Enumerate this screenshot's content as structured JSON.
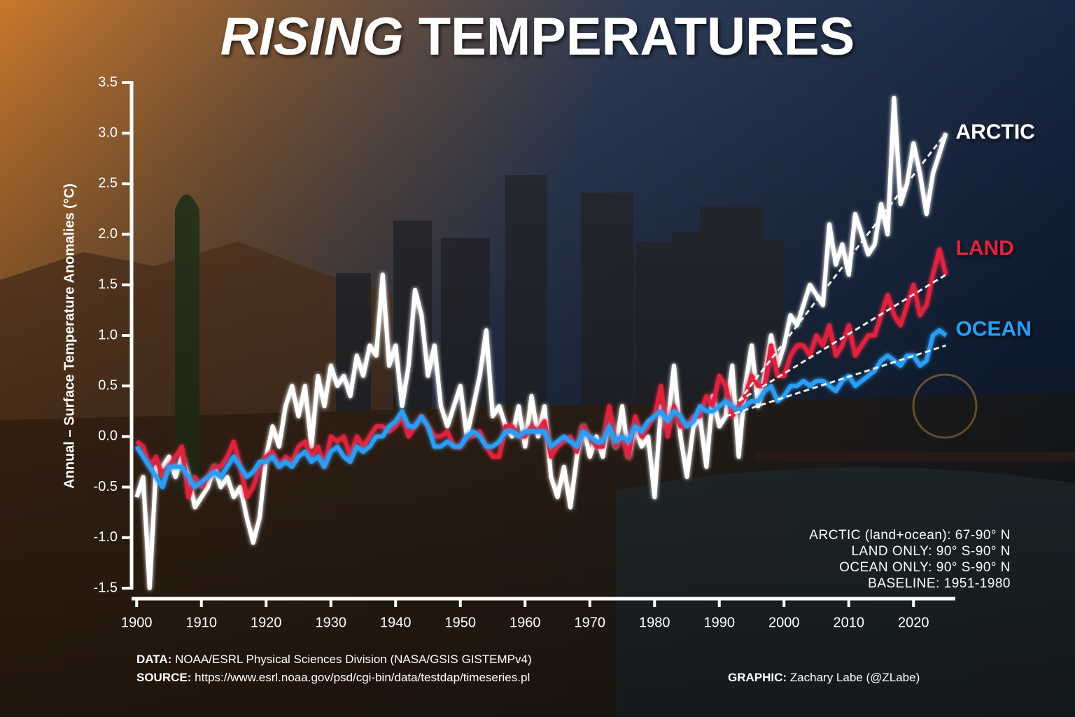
{
  "chart_data": {
    "type": "line",
    "title": {
      "italic": "RISING",
      "rest": "TEMPERATURES"
    },
    "y_label": "Annual – Surface Temperature Anomalies (°C)",
    "xlim": [
      1899,
      2027
    ],
    "ylim": [
      -1.5,
      3.5
    ],
    "xticks": [
      1900,
      1910,
      1920,
      1930,
      1940,
      1950,
      1960,
      1970,
      1980,
      1990,
      2000,
      2010,
      2020
    ],
    "yticks": [
      -1.5,
      {
        "value": -1,
        "label": "-1.0"
      },
      -0.5,
      {
        "value": 0,
        "label": "0.0"
      },
      0.5,
      {
        "value": 1,
        "label": "1.0"
      },
      1.5,
      {
        "value": 2,
        "label": "2.0"
      },
      2.5,
      {
        "value": 3,
        "label": "3.0"
      },
      3.5
    ],
    "x": [
      1900,
      1901,
      1902,
      1903,
      1904,
      1905,
      1906,
      1907,
      1908,
      1909,
      1910,
      1911,
      1912,
      1913,
      1914,
      1915,
      1916,
      1917,
      1918,
      1919,
      1920,
      1921,
      1922,
      1923,
      1924,
      1925,
      1926,
      1927,
      1928,
      1929,
      1930,
      1931,
      1932,
      1933,
      1934,
      1935,
      1936,
      1937,
      1938,
      1939,
      1940,
      1941,
      1942,
      1943,
      1944,
      1945,
      1946,
      1947,
      1948,
      1949,
      1950,
      1951,
      1952,
      1953,
      1954,
      1955,
      1956,
      1957,
      1958,
      1959,
      1960,
      1961,
      1962,
      1963,
      1964,
      1965,
      1966,
      1967,
      1968,
      1969,
      1970,
      1971,
      1972,
      1973,
      1974,
      1975,
      1976,
      1977,
      1978,
      1979,
      1980,
      1981,
      1982,
      1983,
      1984,
      1985,
      1986,
      1987,
      1988,
      1989,
      1990,
      1991,
      1992,
      1993,
      1994,
      1995,
      1996,
      1997,
      1998,
      1999,
      2000,
      2001,
      2002,
      2003,
      2004,
      2005,
      2006,
      2007,
      2008,
      2009,
      2010,
      2011,
      2012,
      2013,
      2014,
      2015,
      2016,
      2017,
      2018,
      2019,
      2020,
      2021,
      2022,
      2023,
      2024,
      2025
    ],
    "series": [
      {
        "name": "ARCTIC",
        "color": "#ffffff",
        "values": [
          -0.6,
          -0.4,
          -1.5,
          -0.3,
          -0.3,
          -0.2,
          -0.4,
          -0.2,
          -0.4,
          -0.7,
          -0.6,
          -0.5,
          -0.3,
          -0.5,
          -0.4,
          -0.6,
          -0.5,
          -0.8,
          -1.05,
          -0.8,
          -0.2,
          0.1,
          -0.1,
          0.3,
          0.5,
          0.2,
          0.5,
          -0.1,
          0.6,
          0.3,
          0.7,
          0.5,
          0.6,
          0.4,
          0.8,
          0.6,
          0.9,
          0.8,
          1.6,
          0.7,
          0.9,
          0.3,
          0.7,
          1.45,
          1.2,
          0.6,
          0.9,
          0.3,
          0.1,
          0.3,
          0.5,
          0.0,
          0.3,
          0.6,
          1.05,
          0.2,
          0.3,
          0.1,
          0.0,
          0.3,
          -0.1,
          0.4,
          0.0,
          0.3,
          -0.4,
          -0.6,
          -0.3,
          -0.7,
          -0.2,
          0.1,
          -0.2,
          0.0,
          -0.2,
          0.2,
          -0.1,
          0.3,
          -0.2,
          0.1,
          -0.1,
          0.0,
          -0.6,
          0.3,
          0.1,
          0.7,
          0.0,
          -0.4,
          0.1,
          0.2,
          -0.3,
          0.4,
          0.1,
          0.2,
          0.7,
          -0.2,
          0.5,
          0.9,
          0.3,
          0.6,
          1.0,
          0.7,
          0.9,
          1.2,
          1.1,
          1.3,
          1.5,
          1.4,
          1.3,
          2.1,
          1.7,
          1.9,
          1.6,
          2.2,
          2.0,
          1.8,
          1.9,
          2.3,
          2.0,
          3.35,
          2.3,
          2.5,
          2.9,
          2.6,
          2.2,
          2.6,
          2.8,
          3.0
        ],
        "trend": {
          "x": [
            1993,
            2025
          ],
          "values": [
            0.35,
            3.0
          ]
        }
      },
      {
        "name": "LAND",
        "color": "#e0203c",
        "values": [
          -0.05,
          -0.1,
          -0.3,
          -0.2,
          -0.4,
          -0.3,
          -0.2,
          -0.1,
          -0.6,
          -0.4,
          -0.5,
          -0.4,
          -0.3,
          -0.3,
          -0.2,
          -0.05,
          -0.3,
          -0.6,
          -0.5,
          -0.3,
          -0.2,
          -0.15,
          -0.3,
          -0.2,
          -0.25,
          -0.1,
          -0.05,
          -0.2,
          -0.1,
          -0.3,
          0.0,
          -0.05,
          0.0,
          -0.2,
          0.0,
          -0.1,
          0.0,
          0.1,
          0.1,
          0.05,
          0.1,
          0.2,
          0.0,
          0.1,
          0.2,
          0.1,
          0.0,
          0.0,
          0.05,
          -0.1,
          -0.1,
          0.0,
          0.0,
          0.05,
          -0.1,
          -0.2,
          -0.2,
          0.1,
          0.1,
          0.0,
          0.0,
          0.1,
          0.05,
          0.15,
          -0.2,
          -0.1,
          -0.05,
          0.0,
          -0.15,
          0.1,
          0.0,
          -0.1,
          -0.1,
          0.3,
          -0.1,
          0.0,
          -0.2,
          0.2,
          0.0,
          0.1,
          0.2,
          0.5,
          0.0,
          0.3,
          0.1,
          0.1,
          0.2,
          0.2,
          0.4,
          0.3,
          0.6,
          0.5,
          0.2,
          0.3,
          0.4,
          0.6,
          0.5,
          0.5,
          0.9,
          0.6,
          0.6,
          0.8,
          0.9,
          0.9,
          0.8,
          1.0,
          0.9,
          1.1,
          0.8,
          0.9,
          1.1,
          0.8,
          0.9,
          1.0,
          1.0,
          1.2,
          1.4,
          1.2,
          1.1,
          1.3,
          1.5,
          1.2,
          1.3,
          1.6,
          1.85,
          1.6
        ],
        "trend": {
          "x": [
            1993,
            2025
          ],
          "values": [
            0.35,
            1.6
          ]
        }
      },
      {
        "name": "OCEAN",
        "color": "#2a9df4",
        "values": [
          -0.1,
          -0.2,
          -0.3,
          -0.4,
          -0.5,
          -0.3,
          -0.3,
          -0.3,
          -0.4,
          -0.5,
          -0.45,
          -0.4,
          -0.35,
          -0.4,
          -0.3,
          -0.2,
          -0.3,
          -0.4,
          -0.35,
          -0.25,
          -0.25,
          -0.2,
          -0.3,
          -0.25,
          -0.3,
          -0.2,
          -0.15,
          -0.25,
          -0.2,
          -0.3,
          -0.15,
          -0.1,
          -0.2,
          -0.25,
          -0.1,
          -0.15,
          -0.1,
          0.0,
          0.0,
          0.1,
          0.15,
          0.25,
          0.1,
          0.1,
          0.2,
          0.1,
          -0.1,
          -0.1,
          -0.05,
          -0.1,
          -0.1,
          0.0,
          0.05,
          0.0,
          -0.1,
          -0.1,
          -0.05,
          0.05,
          0.05,
          0.0,
          0.05,
          0.05,
          0.05,
          0.05,
          -0.1,
          -0.05,
          0.0,
          -0.05,
          -0.1,
          0.05,
          0.0,
          -0.05,
          -0.05,
          0.1,
          -0.05,
          0.0,
          -0.05,
          0.1,
          0.05,
          0.15,
          0.2,
          0.25,
          0.15,
          0.25,
          0.2,
          0.1,
          0.15,
          0.3,
          0.25,
          0.25,
          0.3,
          0.35,
          0.3,
          0.25,
          0.3,
          0.35,
          0.35,
          0.45,
          0.5,
          0.35,
          0.4,
          0.5,
          0.5,
          0.55,
          0.5,
          0.55,
          0.55,
          0.5,
          0.45,
          0.55,
          0.6,
          0.5,
          0.55,
          0.6,
          0.65,
          0.75,
          0.8,
          0.75,
          0.7,
          0.8,
          0.8,
          0.7,
          0.75,
          1.0,
          1.05,
          1.0
        ],
        "trend": {
          "x": [
            1991,
            2025
          ],
          "values": [
            0.2,
            0.9
          ]
        }
      }
    ],
    "notes": [
      "ARCTIC (land+ocean): 67-90° N",
      "LAND ONLY: 90° S-90° N",
      "OCEAN ONLY: 90° S-90° N",
      "BASELINE: 1951-1980"
    ],
    "footer": {
      "data_label": "DATA:",
      "data": "NOAA/ESRL Physical Sciences Division (NASA/GSIS GISTEMPv4)",
      "source_label": "SOURCE:",
      "source": "https://www.esrl.noaa.gov/psd/cgi-bin/data/testdap/timeseries.pl",
      "graphic_label": "GRAPHIC:",
      "graphic": "Zachary Labe (@ZLabe)"
    }
  }
}
